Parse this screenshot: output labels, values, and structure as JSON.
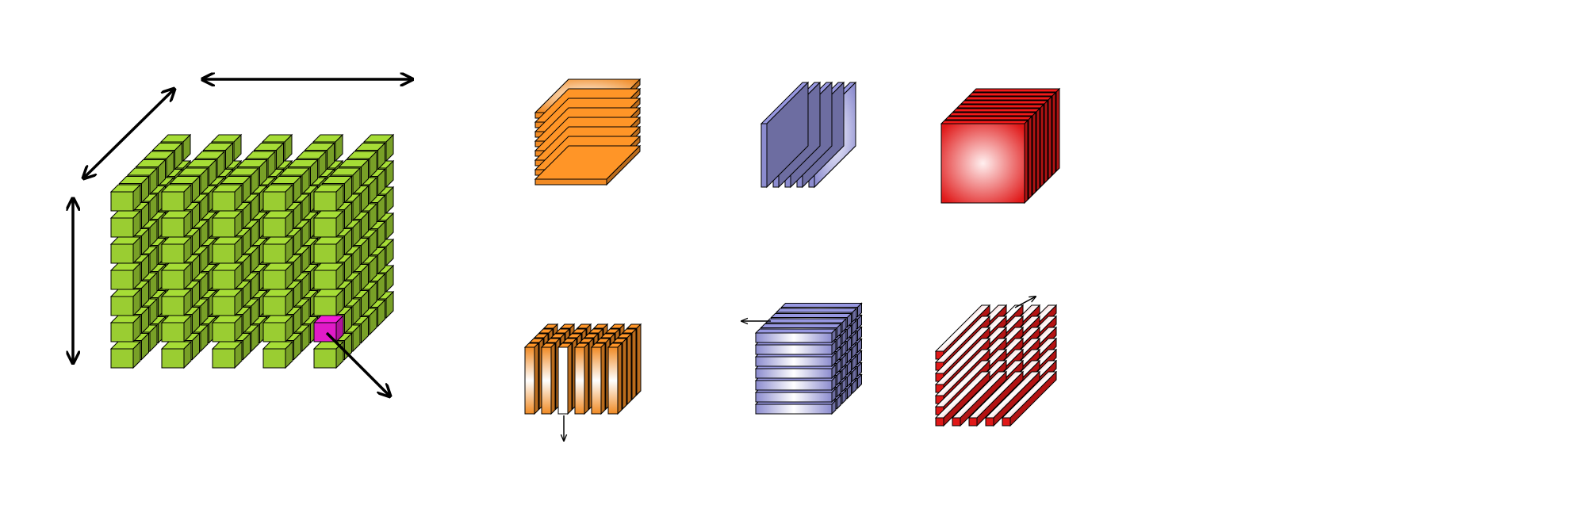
{
  "colors": {
    "background": "#ffffff",
    "outline": "#000000",
    "tensor_cube": "#9acd32",
    "highlight_voxel": "#e01bc8",
    "orange": "#f08a24",
    "purple": "#8c8ccf",
    "red": "#e01818",
    "arrow": "#000000"
  },
  "groups": [
    {
      "id": "tensor",
      "kind": "voxel-grid",
      "color_key": "tensor_cube",
      "highlight_color_key": "highlight_voxel"
    },
    {
      "id": "slices",
      "kind": "slice-stacks",
      "items": [
        {
          "id": "horizontal-slices",
          "color_key": "orange",
          "orientation": "horizontal"
        },
        {
          "id": "lateral-slices",
          "color_key": "purple",
          "orientation": "lateral"
        },
        {
          "id": "frontal-slices",
          "color_key": "red",
          "orientation": "frontal"
        }
      ]
    },
    {
      "id": "fibers",
      "kind": "fiber-bundles",
      "items": [
        {
          "id": "column-fibers",
          "color_key": "orange",
          "orientation": "vertical",
          "highlighted": true
        },
        {
          "id": "row-fibers",
          "color_key": "purple",
          "orientation": "horizontal",
          "highlighted": false
        },
        {
          "id": "tube-fibers",
          "color_key": "red",
          "orientation": "depth",
          "highlighted": true
        }
      ]
    }
  ]
}
